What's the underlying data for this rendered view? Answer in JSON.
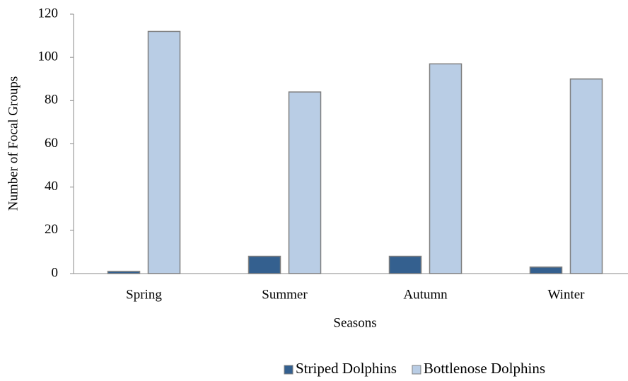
{
  "chart_data": {
    "type": "bar",
    "x_label": "Seasons",
    "y_label": "Number of Focal Groups",
    "categories": [
      "Spring",
      "Summer",
      "Autumn",
      "Winter"
    ],
    "series": [
      {
        "name": "Striped Dolphins",
        "color": "#34608f",
        "values": [
          1,
          8,
          8,
          3
        ]
      },
      {
        "name": "Bottlenose Dolphins",
        "color": "#b9cde5",
        "values": [
          112,
          84,
          97,
          90
        ]
      }
    ],
    "ylim": [
      0,
      120
    ],
    "yticks": [
      0,
      20,
      40,
      60,
      80,
      100,
      120
    ],
    "grid": false,
    "legend": "bottom"
  }
}
